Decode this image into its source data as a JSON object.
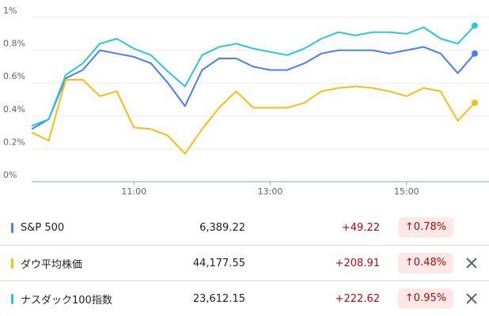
{
  "chart_data": {
    "type": "line",
    "x": [
      9.5,
      9.75,
      10,
      10.25,
      10.5,
      10.75,
      11,
      11.25,
      11.5,
      11.75,
      12,
      12.25,
      12.5,
      12.75,
      13,
      13.25,
      13.5,
      13.75,
      14,
      14.25,
      14.5,
      14.75,
      15,
      15.25,
      15.5,
      15.75,
      16
    ],
    "xlim": [
      9.5,
      16
    ],
    "xticks": [
      {
        "value": 11,
        "label": "11:00"
      },
      {
        "value": 13,
        "label": "13:00"
      },
      {
        "value": 15,
        "label": "15:00"
      }
    ],
    "ylim": [
      0,
      1
    ],
    "yticks": [
      {
        "value": 0,
        "label": "0%"
      },
      {
        "value": 0.2,
        "label": "0.2%"
      },
      {
        "value": 0.4,
        "label": "0.4%"
      },
      {
        "value": 0.6,
        "label": "0.6%"
      },
      {
        "value": 0.8,
        "label": "0.8%"
      },
      {
        "value": 1,
        "label": "1%"
      }
    ],
    "grid": true,
    "series": [
      {
        "name": "S&P 500",
        "color": "#4d7cf0",
        "values": [
          0.32,
          0.38,
          0.63,
          0.68,
          0.8,
          0.78,
          0.76,
          0.72,
          0.6,
          0.46,
          0.68,
          0.75,
          0.75,
          0.7,
          0.68,
          0.68,
          0.72,
          0.78,
          0.8,
          0.8,
          0.8,
          0.78,
          0.8,
          0.82,
          0.78,
          0.66,
          0.78
        ]
      },
      {
        "name": "ダウ平均株価",
        "color": "#f9bc15",
        "values": [
          0.3,
          0.25,
          0.62,
          0.62,
          0.52,
          0.55,
          0.33,
          0.32,
          0.28,
          0.17,
          0.32,
          0.45,
          0.55,
          0.45,
          0.45,
          0.45,
          0.48,
          0.55,
          0.57,
          0.58,
          0.57,
          0.55,
          0.52,
          0.57,
          0.55,
          0.37,
          0.48
        ]
      },
      {
        "name": "ナスダック100指数",
        "color": "#2cc4dd",
        "values": [
          0.34,
          0.38,
          0.65,
          0.72,
          0.84,
          0.87,
          0.81,
          0.77,
          0.67,
          0.58,
          0.77,
          0.82,
          0.84,
          0.81,
          0.79,
          0.77,
          0.81,
          0.87,
          0.91,
          0.89,
          0.91,
          0.91,
          0.9,
          0.94,
          0.87,
          0.84,
          0.95
        ]
      }
    ]
  },
  "table": {
    "rows": [
      {
        "price": "6,389.22",
        "change": "+49.22",
        "change_pct": "0.78%"
      },
      {
        "price": "44,177.55",
        "change": "+208.91",
        "change_pct": "0.48%"
      },
      {
        "price": "23,612.15",
        "change": "+222.62",
        "change_pct": "0.95%"
      }
    ]
  }
}
